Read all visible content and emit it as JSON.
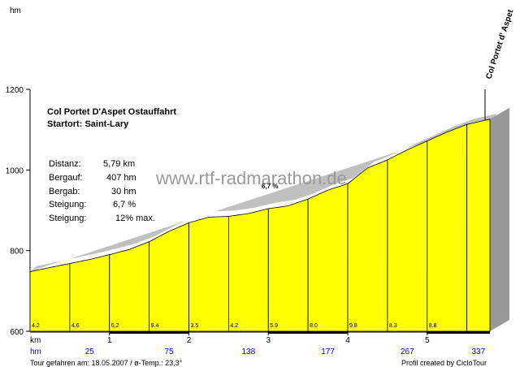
{
  "unit_hm": "hm",
  "unit_km": "km",
  "title": "Col Portet D'Aspet  Ostauffahrt",
  "start": "Startort: Saint-Lary",
  "stats": [
    {
      "label": "Distanz:",
      "value": "5,79 km"
    },
    {
      "label": "Bergauf:",
      "value": "407 hm"
    },
    {
      "label": "Bergab:",
      "value": "30 hm"
    },
    {
      "label": "Steigung:",
      "value": "6,7 %"
    },
    {
      "label": "Steigung:",
      "value": "12% max."
    }
  ],
  "watermark": "www.rtf-radmarathon.de",
  "avg_label": "6,7 %",
  "summit": "Col Portet d' Aspet",
  "footer_left": "Tour gefahren am: 18.05.2007  / ø-Temp.: 23,3°",
  "footer_right": "Profil created by CicloTour",
  "colors": {
    "fill": "#ffff00",
    "side": "#999999",
    "shadow": "#c0c0c0"
  },
  "chart_data": {
    "type": "area",
    "xlabel": "km",
    "ylabel": "hm",
    "ylim": [
      600,
      1200
    ],
    "xlim": [
      0,
      5.79
    ],
    "yticks": [
      600,
      800,
      1000,
      1200
    ],
    "xticks": [
      1,
      2,
      3,
      4,
      5
    ],
    "profile": [
      {
        "x": 0.0,
        "y": 748
      },
      {
        "x": 0.25,
        "y": 758
      },
      {
        "x": 0.5,
        "y": 768
      },
      {
        "x": 0.75,
        "y": 778
      },
      {
        "x": 1.0,
        "y": 790
      },
      {
        "x": 1.25,
        "y": 803
      },
      {
        "x": 1.5,
        "y": 822
      },
      {
        "x": 1.75,
        "y": 848
      },
      {
        "x": 2.0,
        "y": 869
      },
      {
        "x": 2.25,
        "y": 883
      },
      {
        "x": 2.5,
        "y": 885
      },
      {
        "x": 2.75,
        "y": 892
      },
      {
        "x": 3.0,
        "y": 904
      },
      {
        "x": 3.25,
        "y": 911
      },
      {
        "x": 3.5,
        "y": 928
      },
      {
        "x": 3.75,
        "y": 950
      },
      {
        "x": 4.0,
        "y": 966
      },
      {
        "x": 4.25,
        "y": 1005
      },
      {
        "x": 4.5,
        "y": 1025
      },
      {
        "x": 4.75,
        "y": 1050
      },
      {
        "x": 5.0,
        "y": 1072
      },
      {
        "x": 5.25,
        "y": 1094
      },
      {
        "x": 5.5,
        "y": 1113
      },
      {
        "x": 5.79,
        "y": 1126
      }
    ],
    "segments": [
      {
        "x": 0.0,
        "grade": "4.2",
        "hm": ""
      },
      {
        "x": 0.5,
        "grade": "4.6",
        "hm": "25"
      },
      {
        "x": 1.0,
        "grade": "6.2",
        "hm": ""
      },
      {
        "x": 1.5,
        "grade": "9.4",
        "hm": "75"
      },
      {
        "x": 2.0,
        "grade": "3.5",
        "hm": ""
      },
      {
        "x": 2.5,
        "grade": "4.2",
        "hm": "138"
      },
      {
        "x": 3.0,
        "grade": "5.9",
        "hm": ""
      },
      {
        "x": 3.5,
        "grade": "8.0",
        "hm": "177"
      },
      {
        "x": 4.0,
        "grade": "9.8",
        "hm": ""
      },
      {
        "x": 4.5,
        "grade": "8.3",
        "hm": "267"
      },
      {
        "x": 5.0,
        "grade": "8.8",
        "hm": ""
      },
      {
        "x": 5.5,
        "grade": "",
        "hm": "337"
      }
    ]
  }
}
